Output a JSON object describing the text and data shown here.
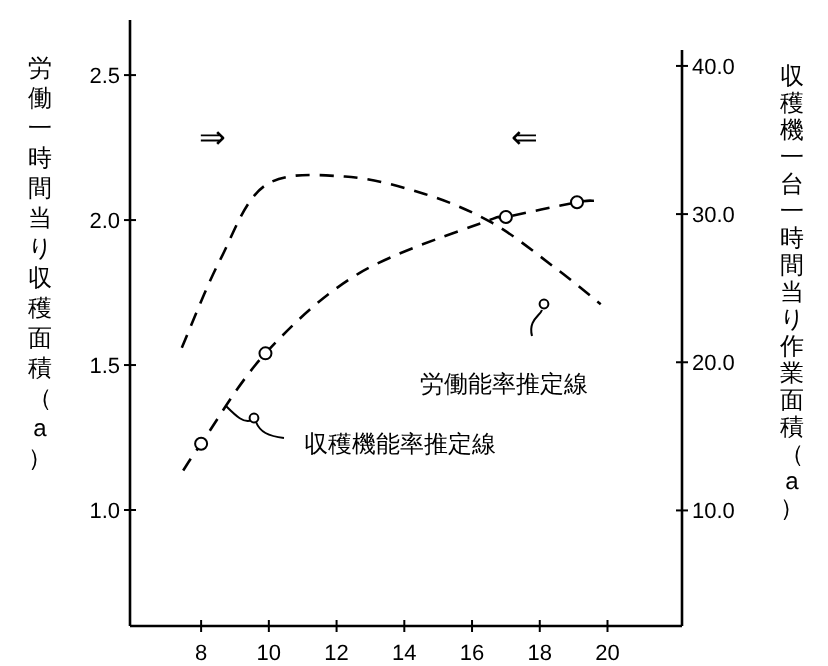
{
  "chart_data": {
    "type": "line",
    "xlim": [
      5.9,
      22.2
    ],
    "xticks": [
      8,
      10,
      12,
      14,
      16,
      18,
      20
    ],
    "ylim": [
      0.6,
      2.69
    ],
    "yticks": [
      {
        "value": 1.0,
        "label": "1.0"
      },
      {
        "value": 1.5,
        "label": "1.5"
      },
      {
        "value": 2.0,
        "label": "2.0"
      },
      {
        "value": 2.5,
        "label": "2.5"
      }
    ],
    "y2lim": [
      2.2,
      43.1
    ],
    "y2ticks": [
      {
        "value": 10,
        "label": "10.0"
      },
      {
        "value": 20,
        "label": "20.0"
      },
      {
        "value": 30,
        "label": "30.0"
      },
      {
        "value": 40,
        "label": "40.0"
      }
    ],
    "ylabel": "労働一時間当り収穫面積（a）",
    "y2label": "収穫機一台一時間当り作業面積（a）",
    "grid": false,
    "line_style": "dashed",
    "series": [
      {
        "color": "#000000",
        "marker": "none",
        "x": [
          7.43,
          8.55,
          9.9,
          12.25,
          14.6,
          16.6,
          18.4,
          19.8
        ],
        "values": [
          1.56,
          1.86,
          2.12,
          2.15,
          2.09,
          1.99,
          1.84,
          1.71
        ]
      },
      {
        "axis": "y2",
        "color": "#000000",
        "marker": "none",
        "x": [
          7.47,
          8.0,
          9.9,
          12.66,
          16.4,
          17.0,
          19.1,
          19.6
        ],
        "values": [
          12.7,
          14.5,
          20.6,
          26.0,
          29.5,
          29.8,
          30.8,
          30.9
        ]
      },
      {
        "type": "scatter",
        "axis": "y2",
        "color": "#000000",
        "marker": "circle",
        "x": [
          8.0,
          9.9,
          17.0,
          19.1
        ],
        "values": [
          14.5,
          20.6,
          29.8,
          30.8
        ]
      }
    ],
    "annotations": [
      "⇒",
      "⇐",
      "労働能率推定線",
      "収穫機能率推定線"
    ]
  }
}
